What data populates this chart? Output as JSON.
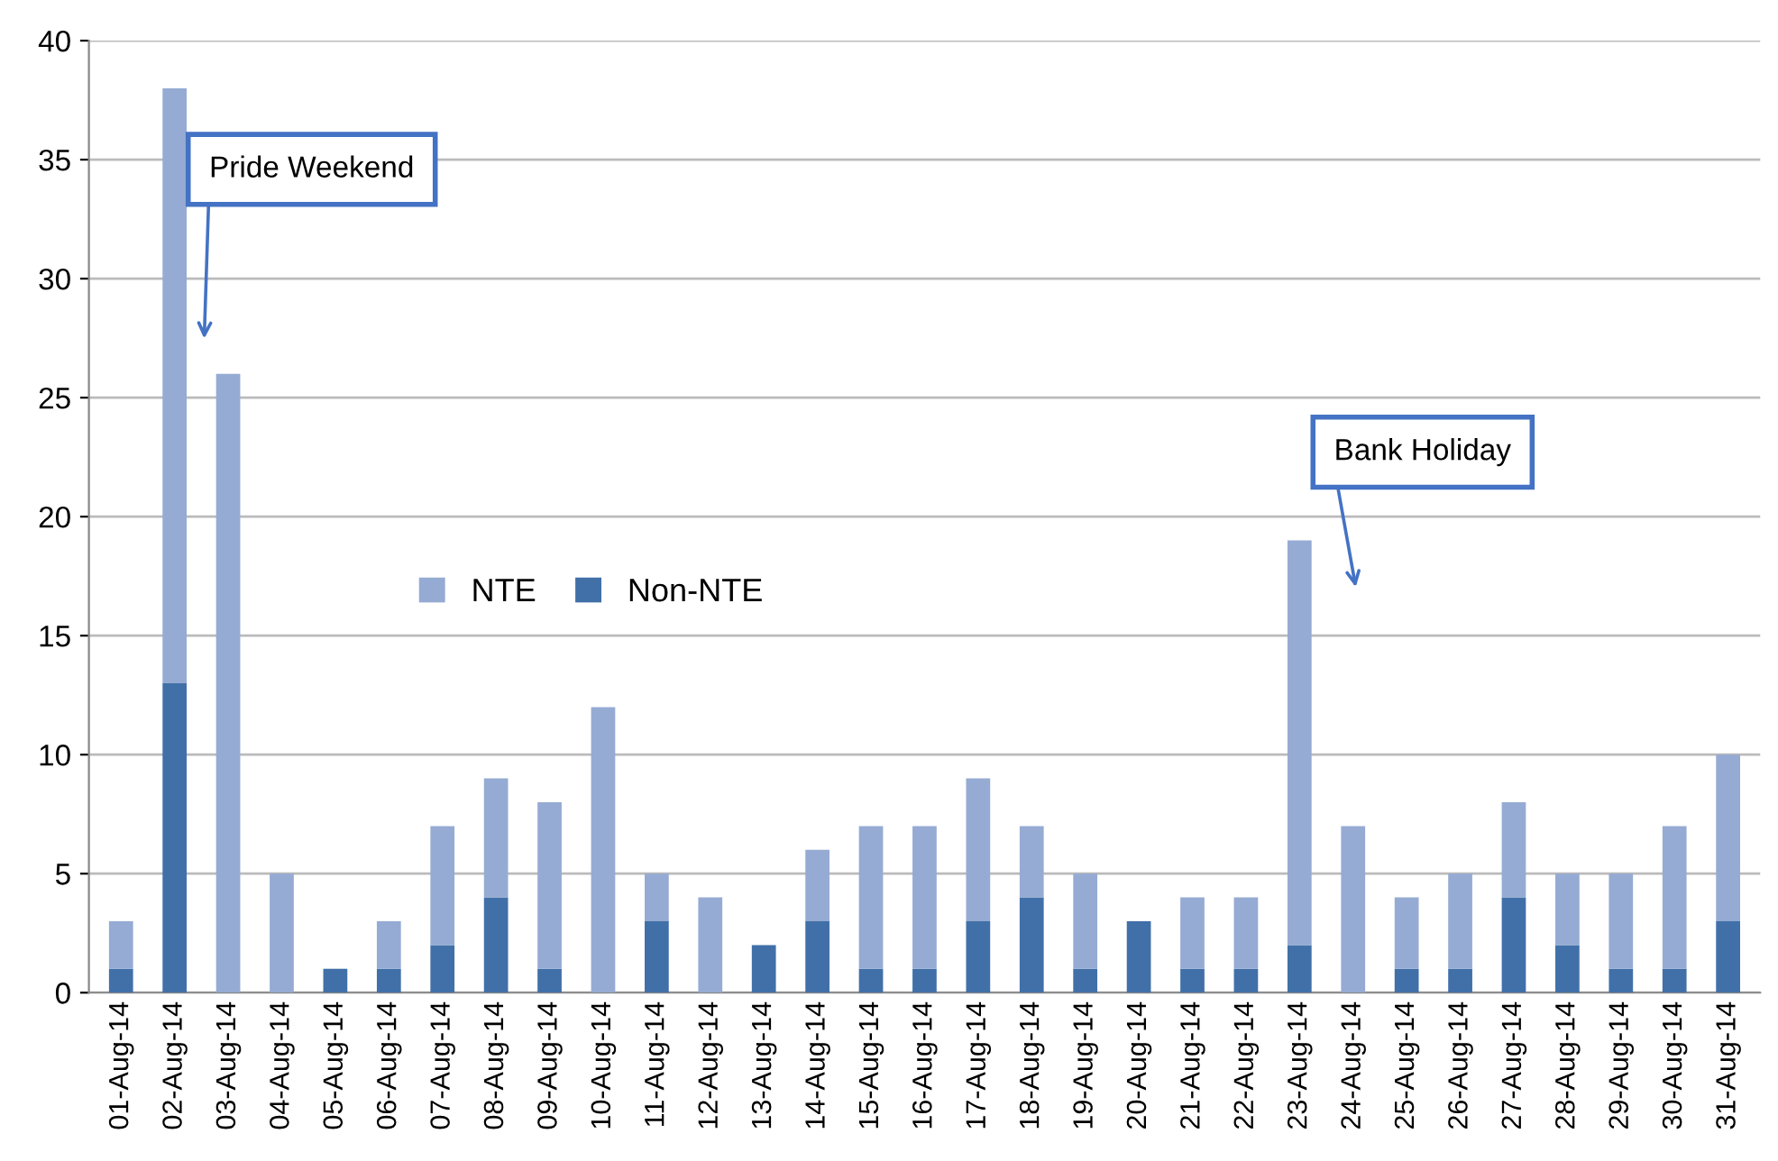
{
  "chart_data": {
    "type": "bar",
    "stacked": true,
    "categories": [
      "01-Aug-14",
      "02-Aug-14",
      "03-Aug-14",
      "04-Aug-14",
      "05-Aug-14",
      "06-Aug-14",
      "07-Aug-14",
      "08-Aug-14",
      "09-Aug-14",
      "10-Aug-14",
      "11-Aug-14",
      "12-Aug-14",
      "13-Aug-14",
      "14-Aug-14",
      "15-Aug-14",
      "16-Aug-14",
      "17-Aug-14",
      "18-Aug-14",
      "19-Aug-14",
      "20-Aug-14",
      "21-Aug-14",
      "22-Aug-14",
      "23-Aug-14",
      "24-Aug-14",
      "25-Aug-14",
      "26-Aug-14",
      "27-Aug-14",
      "28-Aug-14",
      "29-Aug-14",
      "30-Aug-14",
      "31-Aug-14"
    ],
    "series": [
      {
        "name": "Non-NTE",
        "color": "#4170a8",
        "values": [
          1,
          13,
          0,
          0,
          1,
          1,
          2,
          4,
          1,
          0,
          3,
          0,
          2,
          3,
          1,
          1,
          3,
          4,
          1,
          3,
          1,
          1,
          2,
          0,
          1,
          1,
          4,
          2,
          1,
          1,
          3
        ]
      },
      {
        "name": "NTE",
        "color": "#95abd3",
        "values": [
          2,
          25,
          26,
          5,
          0,
          2,
          5,
          5,
          7,
          12,
          2,
          4,
          0,
          3,
          6,
          6,
          6,
          3,
          4,
          0,
          3,
          3,
          17,
          7,
          3,
          4,
          4,
          3,
          4,
          6,
          7
        ]
      }
    ],
    "ylim": [
      0,
      40
    ],
    "yticks": [
      0,
      5,
      10,
      15,
      20,
      25,
      30,
      35,
      40
    ],
    "grid": "y",
    "legend": "left",
    "annotations": [
      "Pride Weekend",
      "Bank Holiday"
    ]
  }
}
